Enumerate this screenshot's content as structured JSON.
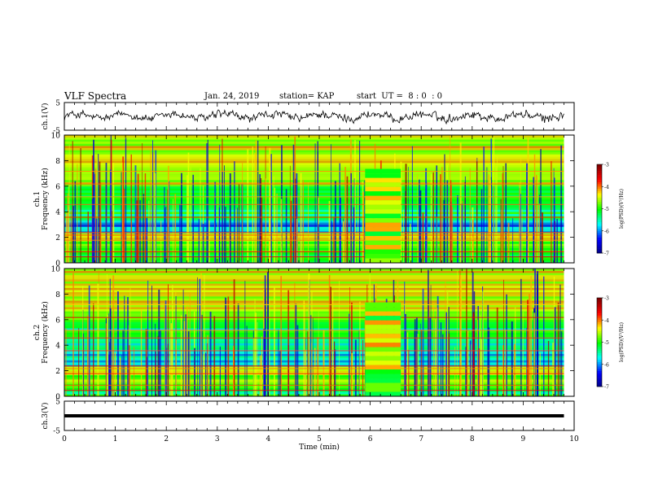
{
  "header": {
    "title": "VLF Spectra",
    "date": "Jan. 24, 2019",
    "station": "station= KAP",
    "start": "start  UT =  8 : 0  : 0"
  },
  "chart_data": [
    {
      "type": "line",
      "name": "ch1-waveform",
      "ylabel": "ch.1(V)",
      "ylim": [
        -5,
        5
      ],
      "yticks": [
        "5",
        "-5"
      ],
      "xlim": [
        0,
        10
      ]
    },
    {
      "type": "heatmap",
      "name": "ch1-spectrogram",
      "ylabel": "Frequency (kHz)",
      "channel_label": "ch.1",
      "ylim": [
        0,
        10
      ],
      "yticks": [
        "0",
        "2",
        "4",
        "6",
        "8",
        "10"
      ],
      "xlim": [
        0,
        10
      ],
      "colorbar": {
        "label": "log(PSD)(V²/Hz)",
        "range": [
          -7,
          -3
        ],
        "ticks": [
          "-3",
          "-4",
          "-5",
          "-6",
          "-7"
        ]
      }
    },
    {
      "type": "heatmap",
      "name": "ch2-spectrogram",
      "ylabel": "Frequency (kHz)",
      "channel_label": "ch.2",
      "ylim": [
        0,
        10
      ],
      "yticks": [
        "0",
        "2",
        "4",
        "6",
        "8",
        "10"
      ],
      "xlim": [
        0,
        10
      ],
      "colorbar": {
        "label": "log(PSD)(V²/Hz)",
        "range": [
          -7,
          -3
        ],
        "ticks": [
          "-3",
          "-4",
          "-5",
          "-6",
          "-7"
        ]
      }
    },
    {
      "type": "line",
      "name": "ch3-waveform",
      "ylabel": "ch.3(V)",
      "ylim": [
        -5,
        5
      ],
      "yticks": [
        "5",
        "-5"
      ],
      "xlim": [
        0,
        10
      ],
      "xlabel": "Time (min)",
      "xticks": [
        "0",
        "1",
        "2",
        "3",
        "4",
        "5",
        "6",
        "7",
        "8",
        "9",
        "10"
      ]
    }
  ],
  "colors": {
    "colormap": [
      "#00007f",
      "#0000ff",
      "#00ffff",
      "#00ff00",
      "#ffff00",
      "#ff0000",
      "#7f0000"
    ]
  }
}
